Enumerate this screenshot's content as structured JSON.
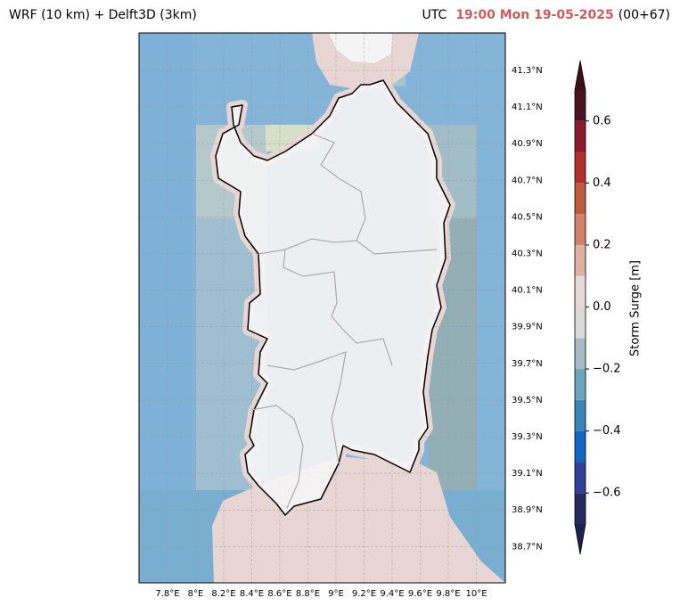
{
  "header": {
    "left": "WRF (10 km) + Delft3D (3km)",
    "utc": "UTC",
    "time": "19:00 Mon 19-05-2025",
    "lead": "(00+67)"
  },
  "map": {
    "lon_ticks": [
      "7.8°E",
      "8°E",
      "8.2°E",
      "8.4°E",
      "8.6°E",
      "8.8°E",
      "9°E",
      "9.2°E",
      "9.4°E",
      "9.6°E",
      "9.8°E",
      "10°E"
    ],
    "lat_ticks": [
      "41.3°N",
      "41.1°N",
      "40.9°N",
      "40.7°N",
      "40.5°N",
      "40.3°N",
      "40.1°N",
      "39.9°N",
      "39.7°N",
      "39.5°N",
      "39.3°N",
      "39.1°N",
      "38.9°N",
      "38.7°N"
    ]
  },
  "colorbar": {
    "label": "Storm Surge [m]",
    "lim": [
      -0.7,
      0.7
    ],
    "ticks": [
      0.6,
      0.4,
      0.2,
      {
        "value": 0,
        "label": "0.0"
      },
      {
        "value": -0.2,
        "label": "−0.2"
      },
      {
        "value": -0.4,
        "label": "−0.4"
      },
      {
        "value": -0.6,
        "label": "−0.6"
      }
    ],
    "levels": [
      -0.7,
      -0.6,
      -0.5,
      -0.4,
      -0.3,
      -0.2,
      -0.1,
      0,
      0.1,
      0.2,
      0.3,
      0.4,
      0.5,
      0.6,
      0.7
    ],
    "colors": [
      "#262a5c",
      "#324099",
      "#1167c0",
      "#3a85b8",
      "#6ba5bd",
      "#a8bac5",
      "#dadada",
      "#e7d9d6",
      "#dfb1a2",
      "#d0836a",
      "#c05a3e",
      "#b0302b",
      "#8b1a2e",
      "#4a1320"
    ],
    "under_color": "#1e2250",
    "over_color": "#3d0f1a"
  }
}
